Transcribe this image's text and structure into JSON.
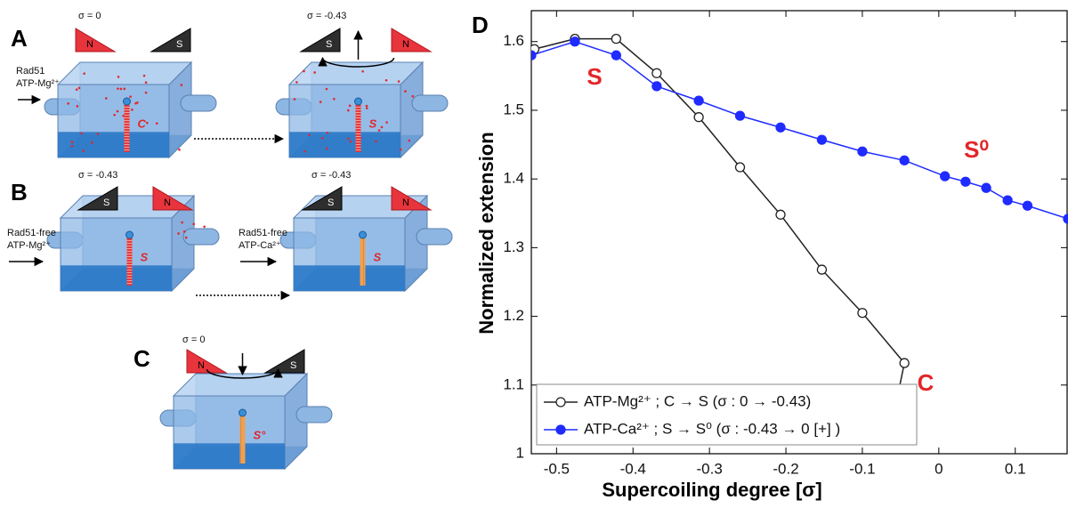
{
  "diagram": {
    "panels": [
      {
        "label": "A",
        "left": {
          "sigma": "σ = 0",
          "magnet_n": "N",
          "magnet_s": "S",
          "buffer": [
            "Rad51",
            "ATP-Mg²⁺"
          ],
          "state": "C"
        },
        "right": {
          "sigma": "σ = -0.43",
          "magnet_s": "S",
          "magnet_n": "N",
          "state": "S"
        }
      },
      {
        "label": "B",
        "left": {
          "sigma": "σ = -0.43",
          "magnet_s": "S",
          "magnet_n": "N",
          "buffer": [
            "Rad51-free",
            "ATP-Mg²⁺"
          ],
          "state": "S"
        },
        "right": {
          "sigma": "σ = -0.43",
          "magnet_s": "S",
          "magnet_n": "N",
          "buffer": [
            "Rad51-free",
            "ATP-Ca²⁺"
          ],
          "state": "S"
        }
      },
      {
        "label": "C",
        "center": {
          "sigma": "σ = 0",
          "magnet_n": "N",
          "magnet_s": "S",
          "state": "S°"
        }
      }
    ]
  },
  "chart_data": {
    "type": "line",
    "panel": "D",
    "xlabel": "Supercoiling degree [σ]",
    "ylabel": "Normalized extension",
    "xlim": [
      -0.533,
      0.169
    ],
    "ylim": [
      1,
      1.645
    ],
    "xticks": [
      -0.5,
      -0.4,
      -0.3,
      -0.2,
      -0.1,
      0,
      0.1
    ],
    "yticks": [
      1,
      1.1,
      1.2,
      1.3,
      1.4,
      1.5,
      1.6
    ],
    "grid": false,
    "legend": "lower left",
    "annotations": [
      "S",
      "S⁰",
      "C"
    ],
    "series": [
      {
        "name": "ATP-Mg²⁺ ; C → S (σ : 0 → -0.43)",
        "color": "#222222",
        "marker": "open",
        "x": [
          -0.529,
          -0.476,
          -0.422,
          -0.369,
          -0.314,
          -0.26,
          -0.207,
          -0.153,
          -0.1,
          -0.045,
          -0.058
        ],
        "values": [
          1.589,
          1.604,
          1.604,
          1.554,
          1.49,
          1.417,
          1.348,
          1.268,
          1.205,
          1.132,
          1.062
        ]
      },
      {
        "name": "ATP-Ca²⁺ ; S → S⁰ (σ : -0.43 → 0 [+] )",
        "color": "#1f2bff",
        "marker": "filled",
        "x": [
          -0.533,
          -0.476,
          -0.422,
          -0.369,
          -0.314,
          -0.26,
          -0.207,
          -0.153,
          -0.1,
          -0.045,
          0.008,
          0.035,
          0.062,
          0.09,
          0.116,
          0.169
        ],
        "values": [
          1.58,
          1.6,
          1.58,
          1.535,
          1.514,
          1.492,
          1.475,
          1.457,
          1.44,
          1.427,
          1.404,
          1.396,
          1.387,
          1.369,
          1.361,
          1.342
        ]
      }
    ]
  }
}
